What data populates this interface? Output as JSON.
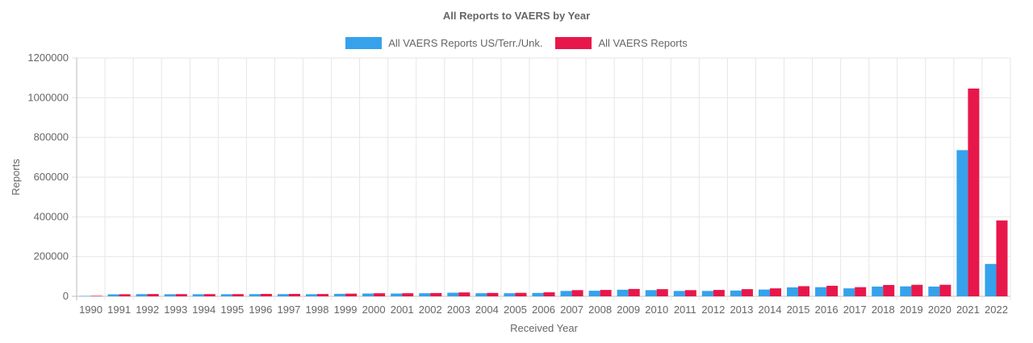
{
  "chart_data": {
    "type": "bar",
    "title": "All Reports to VAERS by Year",
    "xlabel": "Received Year",
    "ylabel": "Reports",
    "ylim": [
      0,
      1200000
    ],
    "yticks": [
      0,
      200000,
      400000,
      600000,
      800000,
      1000000,
      1200000
    ],
    "categories": [
      "1990",
      "1991",
      "1992",
      "1993",
      "1994",
      "1995",
      "1996",
      "1997",
      "1998",
      "1999",
      "2000",
      "2001",
      "2002",
      "2003",
      "2004",
      "2005",
      "2006",
      "2007",
      "2008",
      "2009",
      "2010",
      "2011",
      "2012",
      "2013",
      "2014",
      "2015",
      "2016",
      "2017",
      "2018",
      "2019",
      "2020",
      "2021",
      "2022"
    ],
    "series": [
      {
        "name": "All VAERS Reports US/Terr./Unk.",
        "color": "#36a2eb",
        "values": [
          2000,
          10000,
          11000,
          10500,
          10500,
          10500,
          11000,
          11000,
          10500,
          12500,
          14000,
          14000,
          15500,
          18000,
          15500,
          15500,
          17000,
          27000,
          28000,
          33000,
          31000,
          27000,
          27000,
          29000,
          34000,
          45000,
          46000,
          40000,
          49000,
          50000,
          49000,
          736000,
          163000
        ]
      },
      {
        "name": "All VAERS Reports",
        "color": "#e8174b",
        "values": [
          2500,
          10500,
          11500,
          11000,
          11000,
          11000,
          12000,
          12000,
          11500,
          13500,
          15500,
          15500,
          16500,
          19500,
          17000,
          17500,
          20000,
          31000,
          32000,
          37000,
          36000,
          31000,
          32000,
          36000,
          40000,
          51000,
          53000,
          46000,
          57000,
          58000,
          58000,
          1046000,
          382000
        ]
      }
    ]
  }
}
